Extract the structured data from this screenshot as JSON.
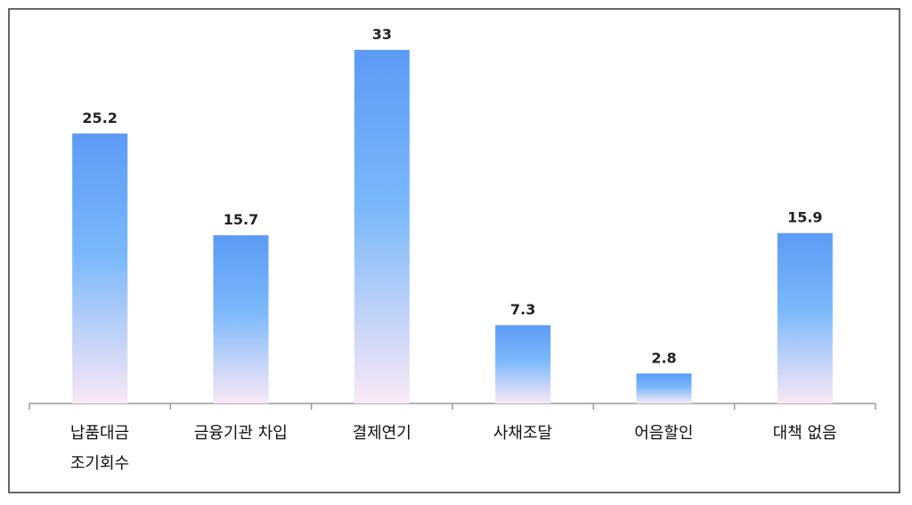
{
  "chart_data": {
    "type": "bar",
    "categories": [
      "납품대금\n조기회수",
      "금융기관 차입",
      "결제연기",
      "사채조달",
      "어음할인",
      "대책 없음"
    ],
    "values": [
      25.2,
      15.7,
      33,
      7.3,
      2.8,
      15.9
    ],
    "color": "#5b9bf5",
    "ylim": [
      0,
      33
    ]
  }
}
